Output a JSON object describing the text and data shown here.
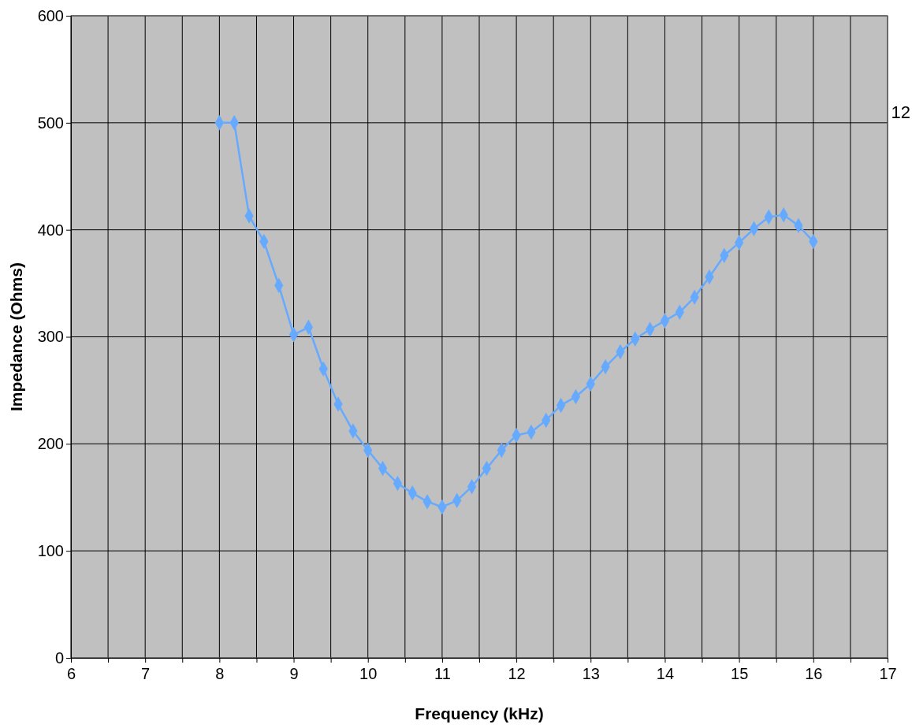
{
  "chart_data": {
    "type": "line",
    "xlabel": "Frequency (kHz)",
    "ylabel": "Impedance (Ohms)",
    "annotations": [
      "12"
    ],
    "x": [
      8,
      8.2,
      8.4,
      8.6,
      8.8,
      9,
      9.2,
      9.4,
      9.6,
      9.8,
      10,
      10.2,
      10.4,
      10.6,
      10.8,
      11,
      11.2,
      11.4,
      11.6,
      11.8,
      12,
      12.2,
      12.4,
      12.6,
      12.8,
      13,
      13.2,
      13.4,
      13.6,
      13.8,
      14,
      14.2,
      14.4,
      14.6,
      14.8,
      15,
      15.2,
      15.4,
      15.6,
      15.8,
      16
    ],
    "series": [
      {
        "color": "#66aaff",
        "values": [
          500,
          500,
          413,
          389,
          348,
          302,
          309,
          270,
          237,
          212,
          194,
          177,
          163,
          154,
          146,
          141,
          147,
          160,
          177,
          194,
          208,
          211,
          222,
          236,
          244,
          256,
          272,
          286,
          298,
          307,
          315,
          323,
          337,
          356,
          376,
          388,
          401,
          412,
          414,
          404,
          389
        ]
      }
    ],
    "xlim": [
      6,
      17
    ],
    "ylim": [
      0,
      600
    ],
    "xticks": [
      6,
      {
        "value": 6.5,
        "label": null
      },
      7,
      {
        "value": 7.5,
        "label": null
      },
      8,
      {
        "value": 8.5,
        "label": null
      },
      9,
      {
        "value": 9.5,
        "label": null
      },
      10,
      {
        "value": 10.5,
        "label": null
      },
      11,
      {
        "value": 11.5,
        "label": null
      },
      12,
      {
        "value": 12.5,
        "label": null
      },
      13,
      {
        "value": 13.5,
        "label": null
      },
      14,
      {
        "value": 14.5,
        "label": null
      },
      15,
      {
        "value": 15.5,
        "label": null
      },
      16,
      {
        "value": 16.5,
        "label": null
      },
      17
    ],
    "yticks": [
      0,
      100,
      200,
      300,
      400,
      500,
      600
    ],
    "grid": true,
    "marker": "diamond",
    "line_style": "solid"
  }
}
